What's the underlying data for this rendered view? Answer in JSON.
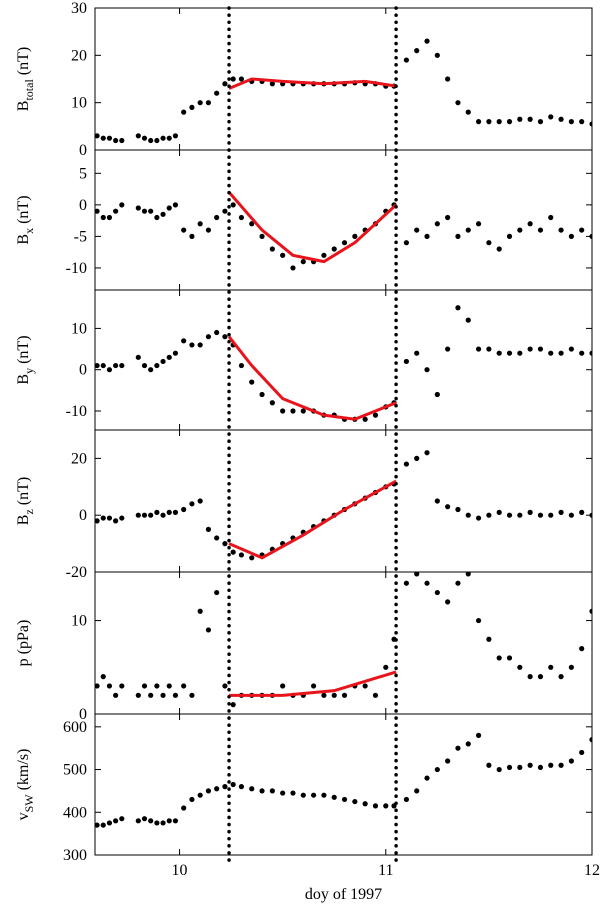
{
  "chart_data": [
    {
      "type": "scatter",
      "ylabel": {
        "main": "B",
        "sub": "total",
        "unit": "(nT)"
      },
      "ylim": [
        0,
        30
      ],
      "yticks": [
        0,
        10,
        20,
        30
      ],
      "xlim": [
        9.59,
        12
      ],
      "xticks": [
        10,
        11,
        12
      ],
      "color": "#000000",
      "vlines": [
        10.24,
        11.05
      ],
      "x": [
        9.6,
        9.63,
        9.66,
        9.69,
        9.72,
        9.8,
        9.83,
        9.86,
        9.89,
        9.92,
        9.95,
        9.98,
        10.02,
        10.06,
        10.1,
        10.14,
        10.18,
        10.22,
        10.26,
        10.3,
        10.35,
        10.4,
        10.45,
        10.5,
        10.55,
        10.6,
        10.65,
        10.7,
        10.75,
        10.8,
        10.85,
        10.9,
        10.95,
        11.0,
        11.04,
        11.1,
        11.15,
        11.2,
        11.25,
        11.3,
        11.35,
        11.4,
        11.45,
        11.5,
        11.55,
        11.6,
        11.65,
        11.7,
        11.75,
        11.8,
        11.85,
        11.9,
        11.95,
        12.0
      ],
      "values": [
        3,
        2.5,
        2.5,
        2,
        2,
        3,
        2.5,
        2,
        2,
        2.5,
        2.5,
        3,
        8,
        9,
        10,
        10,
        12,
        14,
        15,
        15,
        14.5,
        14.5,
        14,
        14,
        14,
        14,
        14,
        14,
        14,
        14,
        14.2,
        14,
        14,
        13.5,
        13.5,
        19,
        21,
        23,
        20,
        15,
        10,
        8,
        6,
        6,
        6,
        6,
        6.5,
        6.5,
        6,
        7,
        6.5,
        6,
        6,
        5.5
      ],
      "fit": {
        "color": "#e8141c",
        "x": [
          10.24,
          10.35,
          10.5,
          10.7,
          10.9,
          11.05
        ],
        "values": [
          13,
          15,
          14.5,
          14,
          14.5,
          13.5
        ]
      }
    },
    {
      "type": "scatter",
      "ylabel": {
        "main": "B",
        "sub": "x",
        "unit": "(nT)"
      },
      "ylim": [
        -13.5,
        8.7
      ],
      "yticks": [
        -10,
        -5,
        0,
        5
      ],
      "xlim": [
        9.59,
        12
      ],
      "xticks": [
        10,
        11,
        12
      ],
      "color": "#000000",
      "x": [
        9.6,
        9.63,
        9.66,
        9.69,
        9.72,
        9.8,
        9.83,
        9.86,
        9.89,
        9.92,
        9.95,
        9.98,
        10.02,
        10.06,
        10.1,
        10.14,
        10.18,
        10.22,
        10.26,
        10.3,
        10.35,
        10.4,
        10.45,
        10.5,
        10.55,
        10.6,
        10.65,
        10.7,
        10.75,
        10.8,
        10.85,
        10.9,
        10.95,
        11.0,
        11.04,
        11.1,
        11.15,
        11.2,
        11.25,
        11.3,
        11.35,
        11.4,
        11.45,
        11.5,
        11.55,
        11.6,
        11.65,
        11.7,
        11.75,
        11.8,
        11.85,
        11.9,
        11.95,
        12.0
      ],
      "values": [
        -1,
        -2,
        -2,
        -1,
        0,
        -0.5,
        -1,
        -1,
        -2,
        -1.5,
        -0.5,
        0,
        -4,
        -5,
        -3,
        -4,
        -2,
        -1,
        0,
        -2,
        -3,
        -5,
        -7,
        -8,
        -10,
        -9,
        -9,
        -8,
        -7,
        -6,
        -5,
        -4,
        -3,
        -1,
        0,
        -6,
        -4,
        -5,
        -3,
        -2,
        -5,
        -4,
        -3,
        -6,
        -7,
        -5,
        -4,
        -3,
        -4,
        -2,
        -4,
        -5,
        -4,
        -5
      ],
      "fit": {
        "color": "#e8141c",
        "x": [
          10.24,
          10.4,
          10.55,
          10.7,
          10.85,
          11.05
        ],
        "values": [
          2,
          -4,
          -8,
          -9,
          -6,
          0
        ]
      }
    },
    {
      "type": "scatter",
      "ylabel": {
        "main": "B",
        "sub": "y",
        "unit": "(nT)"
      },
      "ylim": [
        -14.6,
        19.3
      ],
      "yticks": [
        -10,
        0,
        10
      ],
      "xlim": [
        9.59,
        12
      ],
      "xticks": [
        10,
        11,
        12
      ],
      "color": "#000000",
      "x": [
        9.6,
        9.63,
        9.66,
        9.69,
        9.72,
        9.8,
        9.83,
        9.86,
        9.89,
        9.92,
        9.95,
        9.98,
        10.02,
        10.06,
        10.1,
        10.14,
        10.18,
        10.22,
        10.26,
        10.3,
        10.35,
        10.4,
        10.45,
        10.5,
        10.55,
        10.6,
        10.65,
        10.7,
        10.75,
        10.8,
        10.85,
        10.9,
        10.95,
        11.0,
        11.04,
        11.1,
        11.15,
        11.2,
        11.25,
        11.3,
        11.35,
        11.4,
        11.45,
        11.5,
        11.55,
        11.6,
        11.65,
        11.7,
        11.75,
        11.8,
        11.85,
        11.9,
        11.95,
        12.0
      ],
      "values": [
        1,
        1,
        0,
        1,
        1,
        3,
        1,
        0,
        1,
        2,
        3,
        4,
        7,
        6,
        6,
        8,
        9,
        8,
        6,
        1,
        -3,
        -6,
        -8,
        -10,
        -10,
        -10,
        -10,
        -11,
        -11,
        -12,
        -12,
        -12,
        -11,
        -9,
        -8,
        2,
        4,
        0,
        -6,
        5,
        15,
        12,
        5,
        5,
        4,
        4,
        4,
        5,
        5,
        4,
        4,
        5,
        4,
        4
      ],
      "fit": {
        "color": "#e8141c",
        "x": [
          10.24,
          10.35,
          10.5,
          10.7,
          10.85,
          11.05
        ],
        "values": [
          8,
          1,
          -7,
          -11,
          -12,
          -8
        ]
      }
    },
    {
      "type": "scatter",
      "ylabel": {
        "main": "B",
        "sub": "z",
        "unit": "(nT)"
      },
      "ylim": [
        -20,
        30
      ],
      "yticks": [
        -20,
        0,
        20
      ],
      "xlim": [
        9.59,
        12
      ],
      "xticks": [
        10,
        11,
        12
      ],
      "color": "#000000",
      "x": [
        9.6,
        9.63,
        9.66,
        9.69,
        9.72,
        9.8,
        9.83,
        9.86,
        9.89,
        9.92,
        9.95,
        9.98,
        10.02,
        10.06,
        10.1,
        10.14,
        10.18,
        10.22,
        10.26,
        10.3,
        10.35,
        10.4,
        10.45,
        10.5,
        10.55,
        10.6,
        10.65,
        10.7,
        10.75,
        10.8,
        10.85,
        10.9,
        10.95,
        11.0,
        11.04,
        11.1,
        11.15,
        11.2,
        11.25,
        11.3,
        11.35,
        11.4,
        11.45,
        11.5,
        11.55,
        11.6,
        11.65,
        11.7,
        11.75,
        11.8,
        11.85,
        11.9,
        11.95,
        12.0
      ],
      "values": [
        -2,
        -1,
        -1,
        -2,
        -1,
        0,
        0,
        0,
        1,
        0,
        1,
        1,
        2,
        4,
        5,
        -5,
        -8,
        -10,
        -13,
        -14,
        -15,
        -14,
        -12,
        -10,
        -8,
        -6,
        -4,
        -2,
        0,
        2,
        4,
        6,
        8,
        10,
        11,
        18,
        20,
        22,
        5,
        3,
        2,
        0,
        -1,
        0,
        1,
        0,
        0,
        1,
        0,
        0,
        1,
        0,
        1,
        0
      ],
      "fit": {
        "color": "#e8141c",
        "x": [
          10.24,
          10.4,
          10.6,
          10.8,
          11.05
        ],
        "values": [
          -10,
          -15,
          -7,
          2,
          12
        ]
      }
    },
    {
      "type": "scatter",
      "ylabel": "p (pPa)",
      "ylim": [
        0,
        15.2
      ],
      "yticks": [
        0,
        10
      ],
      "xlim": [
        9.59,
        12
      ],
      "xticks": [
        10,
        11,
        12
      ],
      "color": "#000000",
      "x": [
        9.6,
        9.63,
        9.66,
        9.69,
        9.72,
        9.8,
        9.83,
        9.86,
        9.89,
        9.92,
        9.95,
        9.98,
        10.02,
        10.06,
        10.1,
        10.14,
        10.18,
        10.22,
        10.26,
        10.3,
        10.35,
        10.4,
        10.45,
        10.5,
        10.55,
        10.6,
        10.65,
        10.7,
        10.75,
        10.8,
        10.85,
        10.9,
        10.95,
        11.0,
        11.04,
        11.1,
        11.15,
        11.2,
        11.25,
        11.3,
        11.35,
        11.4,
        11.45,
        11.5,
        11.55,
        11.6,
        11.65,
        11.7,
        11.75,
        11.8,
        11.85,
        11.9,
        11.95,
        12.0
      ],
      "values": [
        3,
        4,
        3,
        2,
        3,
        2,
        3,
        2,
        3,
        2,
        3,
        2,
        3,
        2,
        11,
        9,
        13,
        3,
        1,
        2,
        2,
        2,
        2,
        3,
        2,
        2,
        3,
        2,
        2,
        2,
        3,
        3,
        2,
        5,
        8,
        14,
        15,
        14,
        13,
        12,
        14,
        15,
        10,
        8,
        6,
        6,
        5,
        4,
        4,
        5,
        4,
        5,
        7,
        11
      ],
      "fit": {
        "color": "#e8141c",
        "x": [
          10.24,
          10.5,
          10.75,
          10.9,
          11.05
        ],
        "values": [
          2,
          2,
          2.5,
          3.5,
          4.5
        ]
      }
    },
    {
      "type": "scatter",
      "ylabel": {
        "main": "v",
        "sub": "SW",
        "unit": "(km/s)"
      },
      "ylim": [
        300,
        630
      ],
      "yticks": [
        300,
        400,
        500,
        600
      ],
      "xlim": [
        9.59,
        12
      ],
      "xticks": [
        10,
        11,
        12
      ],
      "color": "#000000",
      "xlabel": "doy of 1997",
      "x": [
        9.6,
        9.63,
        9.66,
        9.69,
        9.72,
        9.8,
        9.83,
        9.86,
        9.89,
        9.92,
        9.95,
        9.98,
        10.02,
        10.06,
        10.1,
        10.14,
        10.18,
        10.22,
        10.26,
        10.3,
        10.35,
        10.4,
        10.45,
        10.5,
        10.55,
        10.6,
        10.65,
        10.7,
        10.75,
        10.8,
        10.85,
        10.9,
        10.95,
        11.0,
        11.04,
        11.1,
        11.15,
        11.2,
        11.25,
        11.3,
        11.35,
        11.4,
        11.45,
        11.5,
        11.55,
        11.6,
        11.65,
        11.7,
        11.75,
        11.8,
        11.85,
        11.9,
        11.95,
        12.0
      ],
      "values": [
        370,
        370,
        375,
        380,
        385,
        380,
        385,
        380,
        375,
        375,
        380,
        380,
        410,
        430,
        440,
        450,
        455,
        460,
        465,
        460,
        455,
        450,
        450,
        445,
        445,
        440,
        440,
        440,
        435,
        430,
        425,
        420,
        415,
        415,
        415,
        430,
        450,
        480,
        500,
        520,
        550,
        560,
        580,
        510,
        500,
        505,
        505,
        510,
        505,
        510,
        510,
        520,
        540,
        570
      ]
    }
  ]
}
